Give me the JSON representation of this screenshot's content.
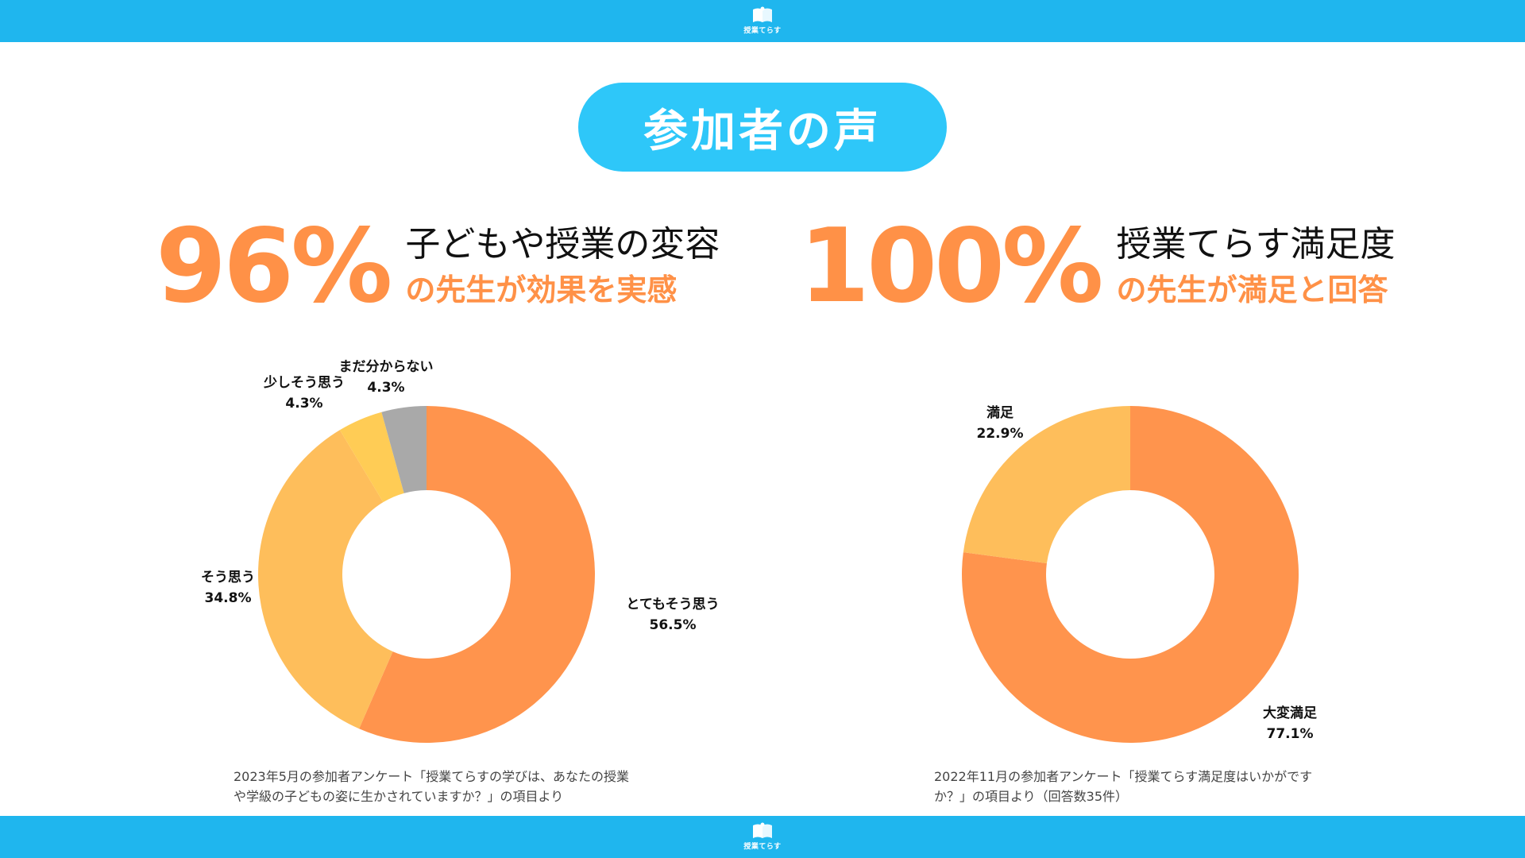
{
  "header": {
    "logo_text": "授業てらす",
    "icon": "book-icon"
  },
  "footer": {
    "logo_text": "授業てらす",
    "icon": "book-icon"
  },
  "title": "参加者の声",
  "stat_left": {
    "value": "96%",
    "line1": "子どもや授業の変容",
    "line2": "の先生が効果を実感"
  },
  "stat_right": {
    "value": "100%",
    "line1": "授業てらす満足度",
    "line2": "の先生が満足と回答"
  },
  "colors": {
    "accent": "#ff9147",
    "bar": "#1fb6ee",
    "pill": "#2ec7f9"
  },
  "chart_data": [
    {
      "type": "pie",
      "donut": true,
      "slices": [
        {
          "label": "とてもそう思う",
          "value": 56.5,
          "display": "56.5%",
          "color": "#ff944d"
        },
        {
          "label": "そう思う",
          "value": 34.8,
          "display": "34.8%",
          "color": "#febe5b"
        },
        {
          "label": "少しそう思う",
          "value": 4.3,
          "display": "4.3%",
          "color": "#ffcc55"
        },
        {
          "label": "まだ分からない",
          "value": 4.3,
          "display": "4.3%",
          "color": "#a9a9a9"
        }
      ],
      "caption": "2023年5月の参加者アンケート「授業てらすの学びは、あなたの授業や学級の子どもの姿に生かされていますか？」の項目より"
    },
    {
      "type": "pie",
      "donut": true,
      "slices": [
        {
          "label": "大変満足",
          "value": 77.1,
          "display": "77.1%",
          "color": "#ff944d"
        },
        {
          "label": "満足",
          "value": 22.9,
          "display": "22.9%",
          "color": "#febe5b"
        }
      ],
      "caption": "2022年11月の参加者アンケート「授業てらす満足度はいかがですか？」の項目より（回答数35件）"
    }
  ]
}
